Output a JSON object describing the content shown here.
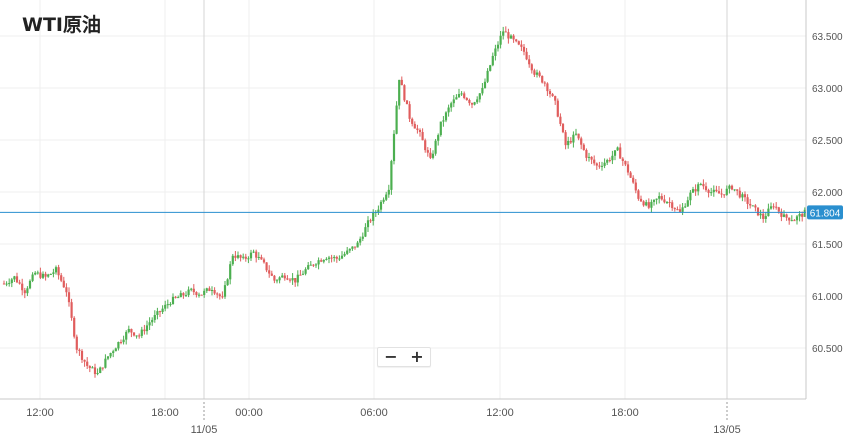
{
  "chart_data": {
    "type": "candlestick",
    "title": "WTI原油",
    "current_price_label": "61.804",
    "current_price": 61.804,
    "y_axis": {
      "ticks": [
        60.5,
        61.0,
        61.5,
        62.0,
        62.5,
        63.0,
        63.5
      ],
      "tick_labels": [
        "60.500",
        "61.000",
        "61.500",
        "62.000",
        "62.500",
        "63.000",
        "63.500"
      ],
      "ylim": [
        60.05,
        63.7
      ]
    },
    "x_axis": {
      "time_labels": [
        "12:00",
        "18:00",
        "00:00",
        "06:00",
        "12:00",
        "18:00"
      ],
      "date_labels": [
        "11/05",
        "13/05"
      ]
    },
    "grid": true,
    "colors": {
      "up": "#4caf50",
      "down": "#e05d5d",
      "price_line": "#2a8fcf",
      "price_badge": "#2a8fcf",
      "grid": "#efefef"
    },
    "close_points": [
      [
        0,
        61.12
      ],
      [
        4,
        61.18
      ],
      [
        8,
        61.05
      ],
      [
        12,
        61.22
      ],
      [
        16,
        61.18
      ],
      [
        20,
        61.25
      ],
      [
        24,
        61.05
      ],
      [
        28,
        60.5
      ],
      [
        32,
        60.33
      ],
      [
        36,
        60.25
      ],
      [
        40,
        60.42
      ],
      [
        44,
        60.55
      ],
      [
        48,
        60.67
      ],
      [
        52,
        60.62
      ],
      [
        56,
        60.75
      ],
      [
        60,
        60.85
      ],
      [
        64,
        60.95
      ],
      [
        68,
        61.0
      ],
      [
        72,
        61.05
      ],
      [
        76,
        61.02
      ],
      [
        80,
        61.08
      ],
      [
        84,
        60.97
      ],
      [
        88,
        61.4
      ],
      [
        92,
        61.35
      ],
      [
        96,
        61.42
      ],
      [
        100,
        61.3
      ],
      [
        104,
        61.15
      ],
      [
        108,
        61.2
      ],
      [
        112,
        61.15
      ],
      [
        116,
        61.25
      ],
      [
        120,
        61.33
      ],
      [
        124,
        61.38
      ],
      [
        128,
        61.36
      ],
      [
        132,
        61.42
      ],
      [
        136,
        61.5
      ],
      [
        140,
        61.7
      ],
      [
        144,
        61.85
      ],
      [
        148,
        62.05
      ],
      [
        152,
        63.1
      ],
      [
        156,
        62.72
      ],
      [
        160,
        62.55
      ],
      [
        164,
        62.3
      ],
      [
        168,
        62.65
      ],
      [
        172,
        62.85
      ],
      [
        176,
        62.95
      ],
      [
        180,
        62.85
      ],
      [
        184,
        62.98
      ],
      [
        188,
        63.3
      ],
      [
        192,
        63.55
      ],
      [
        196,
        63.45
      ],
      [
        200,
        63.35
      ],
      [
        204,
        63.15
      ],
      [
        208,
        63.05
      ],
      [
        212,
        62.85
      ],
      [
        216,
        62.45
      ],
      [
        220,
        62.55
      ],
      [
        224,
        62.35
      ],
      [
        228,
        62.25
      ],
      [
        232,
        62.3
      ],
      [
        236,
        62.4
      ],
      [
        240,
        62.2
      ],
      [
        244,
        61.95
      ],
      [
        248,
        61.85
      ],
      [
        252,
        61.95
      ],
      [
        256,
        61.9
      ],
      [
        260,
        61.8
      ],
      [
        264,
        61.98
      ],
      [
        268,
        62.08
      ],
      [
        272,
        62.0
      ],
      [
        276,
        61.98
      ],
      [
        280,
        62.05
      ],
      [
        284,
        61.95
      ],
      [
        288,
        61.85
      ],
      [
        292,
        61.75
      ],
      [
        296,
        61.88
      ],
      [
        300,
        61.76
      ],
      [
        304,
        61.74
      ],
      [
        308,
        61.8
      ]
    ]
  }
}
